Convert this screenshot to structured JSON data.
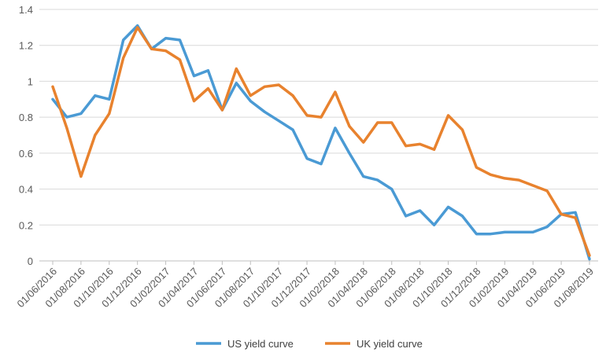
{
  "chart_data": {
    "type": "line",
    "title": "",
    "xlabel": "",
    "ylabel": "",
    "ylim": [
      0,
      1.4
    ],
    "yticks": [
      "0",
      "0.2",
      "0.4",
      "0.6",
      "0.8",
      "1",
      "1.2",
      "1.4"
    ],
    "grid": true,
    "legend_position": "bottom",
    "x_tick_labels": [
      "01/06/2016",
      "01/08/2016",
      "01/10/2016",
      "01/12/2016",
      "01/02/2017",
      "01/04/2017",
      "01/06/2017",
      "01/08/2017",
      "01/10/2017",
      "01/12/2017",
      "01/02/2018",
      "01/04/2018",
      "01/06/2018",
      "01/08/2018",
      "01/10/2018",
      "01/12/2018",
      "01/02/2019",
      "01/04/2019",
      "01/06/2019",
      "01/08/2019"
    ],
    "x": [
      "2016-06",
      "2016-07",
      "2016-08",
      "2016-09",
      "2016-10",
      "2016-11",
      "2016-12",
      "2017-01",
      "2017-02",
      "2017-03",
      "2017-04",
      "2017-05",
      "2017-06",
      "2017-07",
      "2017-08",
      "2017-09",
      "2017-10",
      "2017-11",
      "2017-12",
      "2018-01",
      "2018-02",
      "2018-03",
      "2018-04",
      "2018-05",
      "2018-06",
      "2018-07",
      "2018-08",
      "2018-09",
      "2018-10",
      "2018-11",
      "2018-12",
      "2019-01",
      "2019-02",
      "2019-03",
      "2019-04",
      "2019-05",
      "2019-06",
      "2019-07",
      "2019-08"
    ],
    "series": [
      {
        "name": "US yield curve",
        "color": "#4a9ad4",
        "values": [
          0.9,
          0.8,
          0.82,
          0.92,
          0.9,
          1.23,
          1.31,
          1.18,
          1.24,
          1.23,
          1.03,
          1.06,
          0.84,
          0.99,
          0.89,
          0.83,
          0.78,
          0.73,
          0.57,
          0.54,
          0.74,
          0.6,
          0.47,
          0.45,
          0.4,
          0.25,
          0.28,
          0.2,
          0.3,
          0.25,
          0.15,
          0.15,
          0.16,
          0.16,
          0.16,
          0.19,
          0.26,
          0.27,
          0.01
        ]
      },
      {
        "name": "UK yield curve",
        "color": "#e8822e",
        "values": [
          0.97,
          0.74,
          0.47,
          0.7,
          0.82,
          1.13,
          1.3,
          1.18,
          1.17,
          1.12,
          0.89,
          0.96,
          0.84,
          1.07,
          0.92,
          0.97,
          0.98,
          0.92,
          0.81,
          0.8,
          0.94,
          0.75,
          0.66,
          0.77,
          0.77,
          0.64,
          0.65,
          0.62,
          0.81,
          0.73,
          0.52,
          0.48,
          0.46,
          0.45,
          0.42,
          0.39,
          0.26,
          0.24,
          0.03
        ]
      }
    ]
  }
}
